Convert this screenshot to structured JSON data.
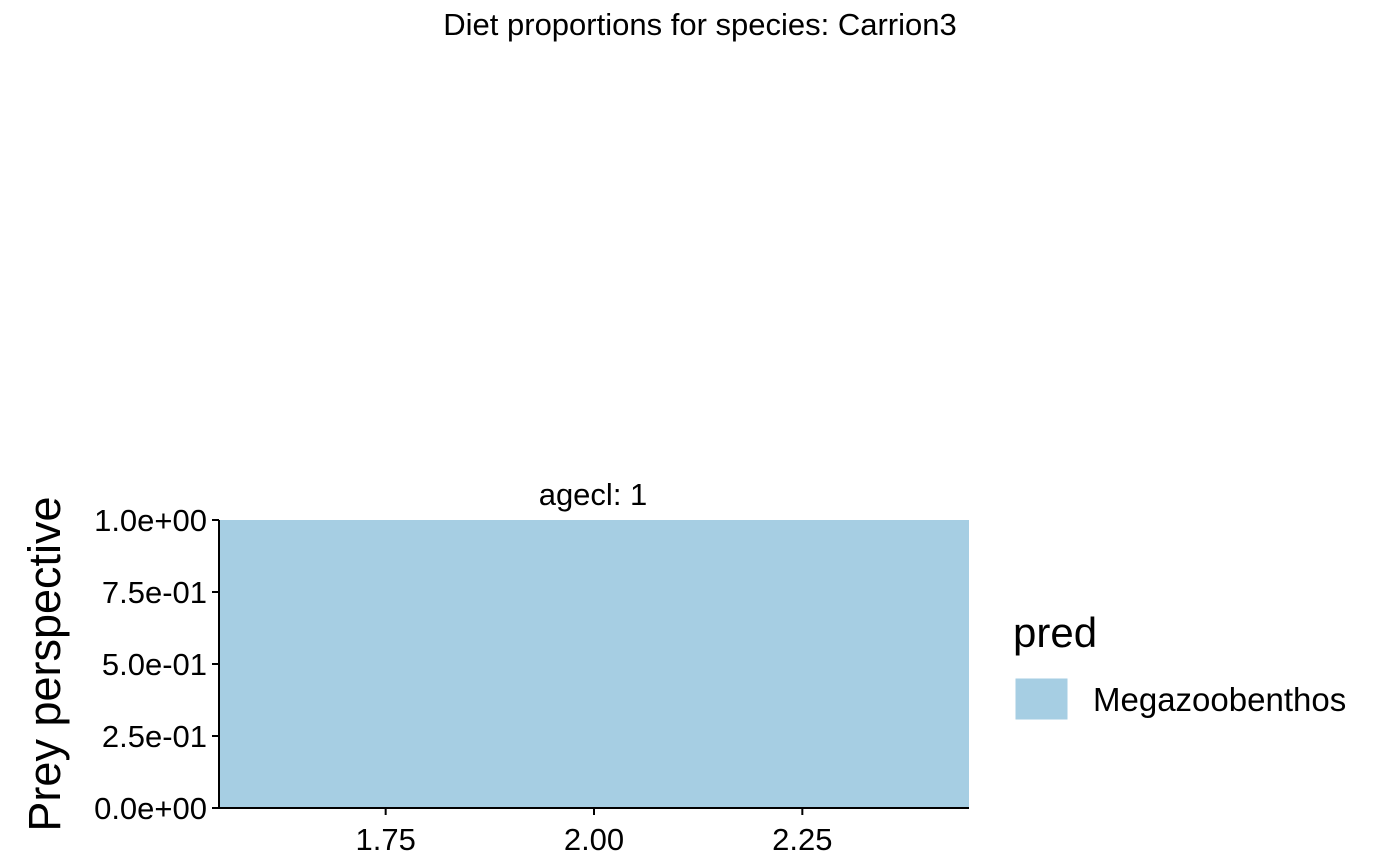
{
  "chart_data": {
    "type": "area",
    "title": "Diet proportions for species: Carrion3",
    "facet_label": "agecl: 1",
    "ylabel": "Prey perspective",
    "xlabel": "",
    "x_ticks": [
      "1.75",
      "2.00",
      "2.25"
    ],
    "x_tick_values": [
      1.75,
      2.0,
      2.25
    ],
    "xlim": [
      1.55,
      2.45
    ],
    "y_ticks": [
      "0.0e+00",
      "2.5e-01",
      "5.0e-01",
      "7.5e-01",
      "1.0e+00"
    ],
    "y_tick_values": [
      0,
      0.25,
      0.5,
      0.75,
      1.0
    ],
    "ylim": [
      0,
      1
    ],
    "legend_title": "pred",
    "legend_position": "right",
    "grid": false,
    "series": [
      {
        "name": "Megazoobenthos",
        "color": "#a6cee3",
        "x": [
          1.55,
          2.45
        ],
        "values": [
          1.0,
          1.0
        ]
      }
    ]
  }
}
